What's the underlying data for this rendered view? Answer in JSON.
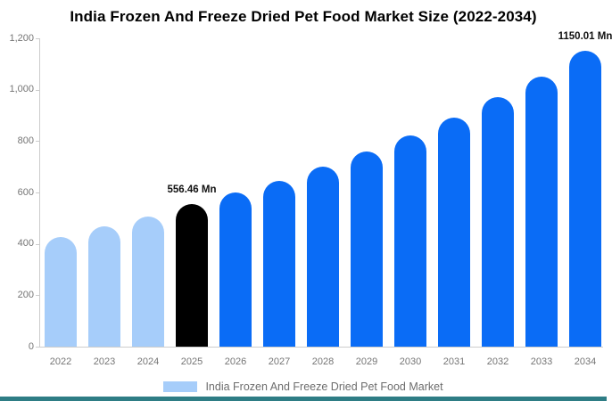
{
  "page": {
    "title": "India Frozen And Freeze Dried Pet Food Market Size (2022-2034)"
  },
  "chart_data": {
    "type": "bar",
    "title": "India Frozen And Freeze Dried Pet Food Market Size (2022-2034)",
    "unit": "Mn",
    "categories": [
      "2022",
      "2023",
      "2024",
      "2025",
      "2026",
      "2027",
      "2028",
      "2029",
      "2030",
      "2031",
      "2032",
      "2033",
      "2034"
    ],
    "values": [
      427,
      468,
      508,
      556.46,
      600,
      645,
      700,
      760,
      822,
      893,
      970,
      1050,
      1150.01
    ],
    "bar_colors": [
      "#a6cdfa",
      "#a6cdfa",
      "#a6cdfa",
      "#000000",
      "#0a6cf6",
      "#0a6cf6",
      "#0a6cf6",
      "#0a6cf6",
      "#0a6cf6",
      "#0a6cf6",
      "#0a6cf6",
      "#0a6cf6",
      "#0a6cf6"
    ],
    "annotations": [
      {
        "category": "2025",
        "text": "556.46 Mn"
      },
      {
        "category": "2034",
        "text": "1150.01 Mn"
      }
    ],
    "ylim": [
      0,
      1200
    ],
    "yticks": [
      0,
      200,
      400,
      600,
      800,
      1000,
      1200
    ],
    "ytick_labels": [
      "0",
      "200",
      "400",
      "600",
      "800",
      "1,000",
      "1,200"
    ],
    "grid": false,
    "legend": {
      "label": "India Frozen And Freeze Dried Pet Food Market",
      "swatch_color": "#a6cdfa",
      "position": "bottom"
    }
  },
  "colors": {
    "accent_blue": "#0a6cf6",
    "light_blue": "#a6cdfa",
    "highlight_black": "#000000",
    "axis_line": "#cccccc",
    "tick_text": "#757575",
    "footer_bar": "#2e7d85"
  }
}
